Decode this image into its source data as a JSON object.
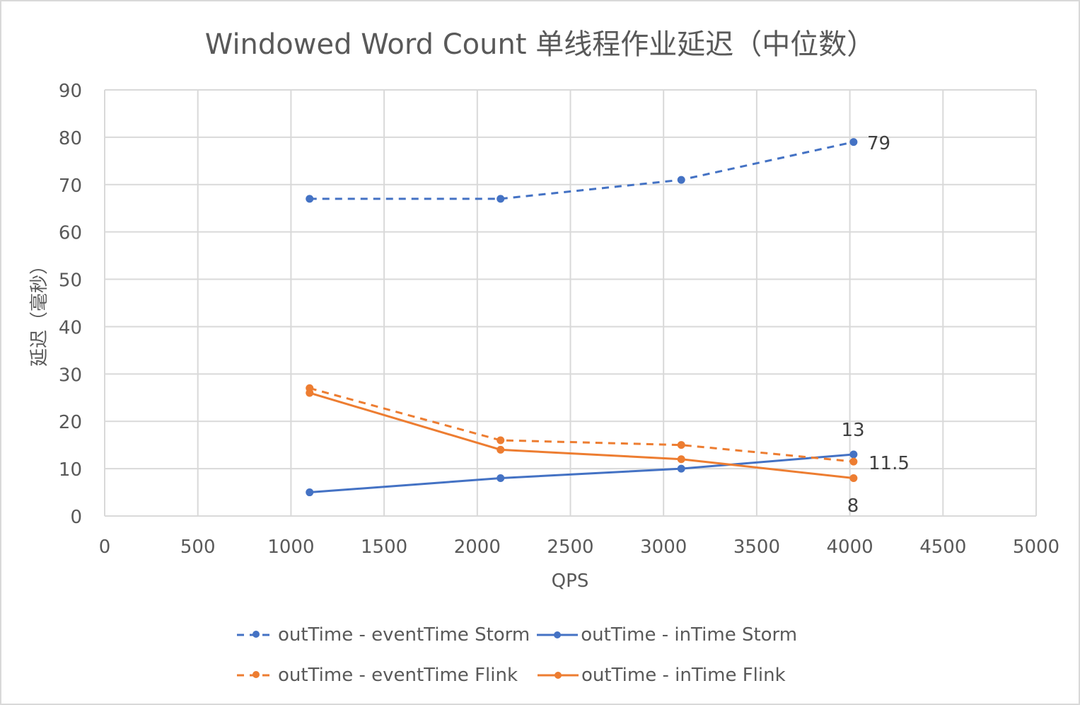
{
  "title": "Windowed Word Count 单线程作业延迟（中位数）",
  "axes": {
    "x_title": "QPS",
    "y_title": "延迟（毫秒）",
    "x_ticks": [
      "0",
      "500",
      "1000",
      "1500",
      "2000",
      "2500",
      "3000",
      "3500",
      "4000",
      "4500",
      "5000"
    ],
    "y_ticks": [
      "0",
      "10",
      "20",
      "30",
      "40",
      "50",
      "60",
      "70",
      "80",
      "90"
    ]
  },
  "legend": [
    {
      "label": "outTime - eventTime Storm",
      "color": "#4472C4",
      "dashed": true
    },
    {
      "label": "outTime - inTime Storm",
      "color": "#4472C4",
      "dashed": false
    },
    {
      "label": "outTime - eventTime Flink",
      "color": "#ED7D31",
      "dashed": true
    },
    {
      "label": "outTime - inTime Flink",
      "color": "#ED7D31",
      "dashed": false
    }
  ],
  "data_labels": {
    "storm_event_last": "79",
    "storm_in_last": "13",
    "flink_event_last": "11.5",
    "flink_in_last": "8"
  },
  "chart_data": {
    "type": "line",
    "title": "Windowed Word Count 单线程作业延迟（中位数）",
    "xlabel": "QPS",
    "ylabel": "延迟（毫秒）",
    "xlim": [
      0,
      5000
    ],
    "ylim": [
      0,
      90
    ],
    "x_ticks": [
      0,
      500,
      1000,
      1500,
      2000,
      2500,
      3000,
      3500,
      4000,
      4500,
      5000
    ],
    "y_ticks": [
      0,
      10,
      20,
      30,
      40,
      50,
      60,
      70,
      80,
      90
    ],
    "grid": true,
    "legend_position": "bottom",
    "series": [
      {
        "name": "outTime - eventTime Storm",
        "color": "#4472C4",
        "style": "dashed",
        "marker": "circle",
        "x": [
          1100,
          2125,
          3095,
          4020
        ],
        "values": [
          67,
          67,
          71,
          79
        ],
        "labeled": [
          false,
          false,
          false,
          true
        ]
      },
      {
        "name": "outTime - inTime Storm",
        "color": "#4472C4",
        "style": "solid",
        "marker": "circle",
        "x": [
          1100,
          2125,
          3095,
          4020
        ],
        "values": [
          5,
          8,
          10,
          13
        ],
        "labeled": [
          false,
          false,
          false,
          true
        ]
      },
      {
        "name": "outTime - eventTime Flink",
        "color": "#ED7D31",
        "style": "dashed",
        "marker": "circle",
        "x": [
          1100,
          2125,
          3095,
          4020
        ],
        "values": [
          27,
          16,
          15,
          11.5
        ],
        "labeled": [
          false,
          false,
          false,
          true
        ]
      },
      {
        "name": "outTime - inTime Flink",
        "color": "#ED7D31",
        "style": "solid",
        "marker": "circle",
        "x": [
          1100,
          2125,
          3095,
          4020
        ],
        "values": [
          26,
          14,
          12,
          8
        ],
        "labeled": [
          false,
          false,
          false,
          true
        ]
      }
    ]
  }
}
